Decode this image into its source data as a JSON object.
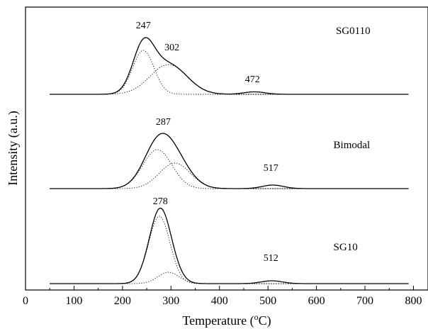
{
  "chart_data": {
    "type": "line",
    "title": "",
    "xlabel": "Temperature (",
    "xlabel_sup": "o",
    "xlabel_suffix": "C)",
    "ylabel": "Intensity (a.u.)",
    "xlim": [
      0,
      830
    ],
    "xticks": [
      0,
      100,
      200,
      300,
      400,
      500,
      600,
      700,
      800
    ],
    "x_range": [
      50,
      790
    ],
    "y_unit_note": "arbitrary units; offsets stack the three profiles",
    "grid": false,
    "series": [
      {
        "name": "SG0110",
        "baseline": 0,
        "label_x": 640,
        "label_level": 0.85,
        "peaks": [
          {
            "center": 243,
            "amp": 0.62,
            "width": 22,
            "dotted": true
          },
          {
            "center": 295,
            "amp": 0.42,
            "width": 38,
            "dotted": true
          },
          {
            "center": 472,
            "amp": 0.035,
            "width": 22,
            "dotted": false
          }
        ],
        "annotations": [
          {
            "text": "247",
            "x": 243,
            "level": 0.93
          },
          {
            "text": "302",
            "x": 302,
            "level": 0.62
          },
          {
            "text": "472",
            "x": 468,
            "level": 0.17
          }
        ]
      },
      {
        "name": "Bimodal",
        "baseline": 0,
        "label_x": 635,
        "label_level": 0.57,
        "peaks": [
          {
            "center": 272,
            "amp": 0.55,
            "width": 30,
            "dotted": true
          },
          {
            "center": 308,
            "amp": 0.36,
            "width": 32,
            "dotted": true
          },
          {
            "center": 510,
            "amp": 0.05,
            "width": 22,
            "dotted": false
          }
        ],
        "annotations": [
          {
            "text": "287",
            "x": 284,
            "level": 0.9
          },
          {
            "text": "517",
            "x": 506,
            "level": 0.25
          }
        ]
      },
      {
        "name": "SG10",
        "baseline": 0,
        "label_x": 635,
        "label_level": 0.47,
        "peaks": [
          {
            "center": 276,
            "amp": 0.95,
            "width": 22,
            "dotted": true
          },
          {
            "center": 295,
            "amp": 0.16,
            "width": 22,
            "dotted": true
          },
          {
            "center": 508,
            "amp": 0.04,
            "width": 22,
            "dotted": false
          }
        ],
        "annotations": [
          {
            "text": "278",
            "x": 278,
            "level": 1.12
          },
          {
            "text": "512",
            "x": 506,
            "level": 0.32
          }
        ]
      }
    ]
  }
}
